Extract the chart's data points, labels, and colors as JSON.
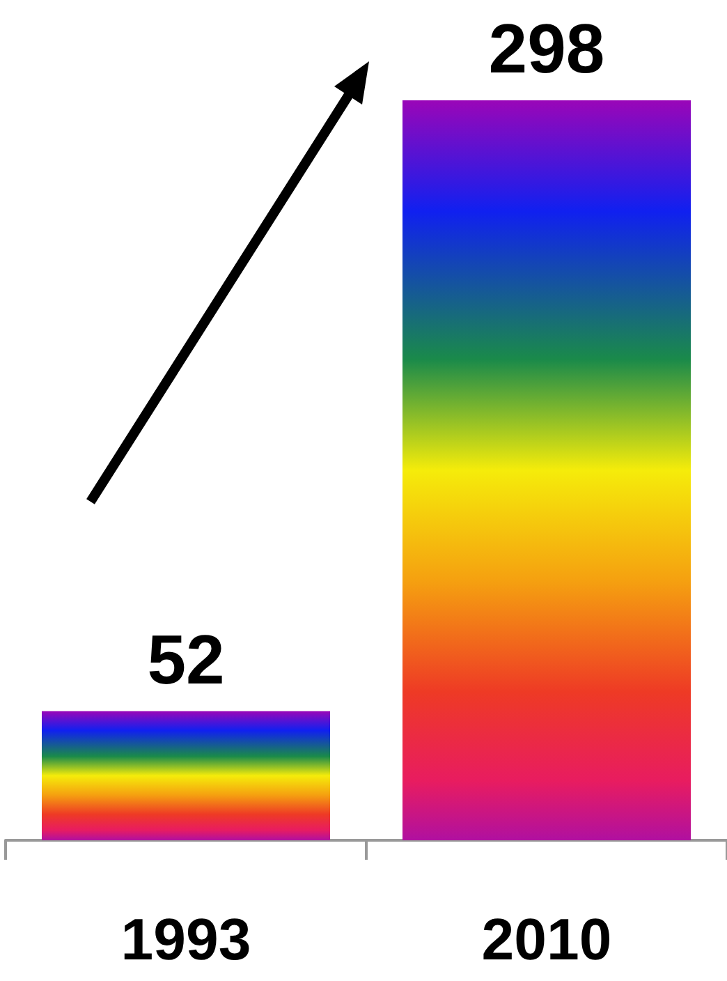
{
  "chart_data": {
    "type": "bar",
    "categories": [
      "1993",
      "2010"
    ],
    "values": [
      52,
      298
    ],
    "color": "#f5ec0a",
    "data_labels": true
  }
}
